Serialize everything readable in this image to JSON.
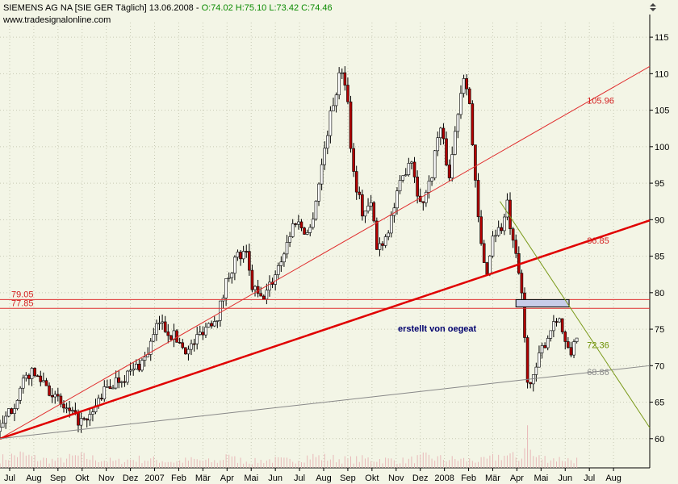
{
  "header": {
    "title": "SIEMENS AG NA [SIE GER  Täglich] 13.06.2008 - ",
    "ohlc": "O:74.02 H:75.10 L:73.42 C:74.46",
    "url": "www.tradesignalonline.com"
  },
  "watermark": "erstellt von oegeat",
  "chart_data": {
    "type": "candlestick",
    "ylim": [
      56,
      117
    ],
    "y_ticks": [
      60,
      65,
      70,
      75,
      80,
      85,
      90,
      95,
      100,
      105,
      110,
      115
    ],
    "x_ticks": [
      "Jul",
      "Aug",
      "Sep",
      "Okt",
      "Nov",
      "Dez",
      "2007",
      "Feb",
      "Mär",
      "Apr",
      "Mai",
      "Jun",
      "Jul",
      "Aug",
      "Sep",
      "Okt",
      "Nov",
      "Dez",
      "2008",
      "Feb",
      "Mär",
      "Apr",
      "Mai",
      "Jun",
      "Jul",
      "Aug"
    ],
    "price_path": [
      [
        0,
        61
      ],
      [
        3,
        65
      ],
      [
        6,
        69
      ],
      [
        9,
        68
      ],
      [
        12,
        65
      ],
      [
        15,
        63
      ],
      [
        18,
        62
      ],
      [
        21,
        66
      ],
      [
        24,
        68
      ],
      [
        27,
        69
      ],
      [
        30,
        71
      ],
      [
        33,
        76
      ],
      [
        36,
        74
      ],
      [
        39,
        72
      ],
      [
        42,
        75
      ],
      [
        45,
        77
      ],
      [
        46,
        79
      ],
      [
        47,
        82
      ],
      [
        49,
        85
      ],
      [
        51,
        85
      ],
      [
        52,
        81
      ],
      [
        54,
        79
      ],
      [
        56,
        81
      ],
      [
        59,
        86
      ],
      [
        61,
        90
      ],
      [
        64,
        88
      ],
      [
        66,
        95
      ],
      [
        68,
        103
      ],
      [
        70,
        109
      ],
      [
        71,
        111
      ],
      [
        72,
        106
      ],
      [
        73,
        97
      ],
      [
        75,
        91
      ],
      [
        77,
        92
      ],
      [
        78,
        86
      ],
      [
        80,
        88
      ],
      [
        83,
        95
      ],
      [
        85,
        99
      ],
      [
        87,
        92
      ],
      [
        89,
        95
      ],
      [
        91,
        103
      ],
      [
        93,
        96
      ],
      [
        95,
        106
      ],
      [
        96,
        110
      ],
      [
        97,
        108
      ],
      [
        98,
        98
      ],
      [
        99,
        90
      ],
      [
        100,
        84
      ],
      [
        101,
        83
      ],
      [
        102,
        88
      ],
      [
        104,
        89
      ],
      [
        105,
        92
      ],
      [
        106,
        87
      ],
      [
        107,
        84
      ],
      [
        108,
        80
      ],
      [
        109,
        69
      ],
      [
        110,
        67
      ],
      [
        112,
        72
      ],
      [
        114,
        75
      ],
      [
        115,
        77
      ],
      [
        116,
        76
      ],
      [
        117,
        73
      ],
      [
        118,
        71
      ],
      [
        119,
        74
      ],
      [
        119.6,
        74.5
      ]
    ],
    "volume_path": [
      [
        0,
        10
      ],
      [
        4,
        15
      ],
      [
        8,
        10
      ],
      [
        12,
        8
      ],
      [
        16,
        13
      ],
      [
        20,
        10
      ],
      [
        24,
        7
      ],
      [
        28,
        10
      ],
      [
        32,
        9
      ],
      [
        36,
        7
      ],
      [
        40,
        9
      ],
      [
        44,
        7
      ],
      [
        46,
        8
      ],
      [
        47,
        21
      ],
      [
        48,
        10
      ],
      [
        52,
        7
      ],
      [
        56,
        9
      ],
      [
        60,
        8
      ],
      [
        64,
        13
      ],
      [
        68,
        11
      ],
      [
        72,
        9
      ],
      [
        76,
        10
      ],
      [
        80,
        9
      ],
      [
        84,
        8
      ],
      [
        88,
        12
      ],
      [
        92,
        10
      ],
      [
        96,
        9
      ],
      [
        100,
        8
      ],
      [
        104,
        14
      ],
      [
        108,
        11
      ],
      [
        109,
        48
      ],
      [
        110,
        13
      ],
      [
        112,
        11
      ],
      [
        116,
        10
      ],
      [
        119,
        9
      ]
    ],
    "horizontal_lines": [
      {
        "label": "79.05",
        "value": 79.05
      },
      {
        "label": "77.85",
        "value": 77.85
      }
    ],
    "trend_lines": [
      {
        "label": "105.96",
        "from": [
          0,
          60
        ],
        "to": [
          134.5,
          111
        ],
        "style": "thin-red"
      },
      {
        "label": "86.85",
        "from": [
          0,
          60
        ],
        "to": [
          134.5,
          89.9
        ],
        "style": "thick-red"
      },
      {
        "label": "68.86",
        "from": [
          0,
          60
        ],
        "to": [
          134.5,
          70
        ],
        "style": "gray"
      },
      {
        "label": "72.36",
        "from": [
          103.5,
          92.5
        ],
        "to": [
          134.5,
          61.5
        ],
        "style": "olive"
      }
    ],
    "trend_labels": [
      {
        "text": "105.96",
        "at": [
          121.5,
          105.9
        ],
        "color": "#d42020"
      },
      {
        "text": "86.85",
        "at": [
          121.5,
          86.7
        ],
        "color": "#d42020"
      },
      {
        "text": "72.36",
        "at": [
          121.5,
          72.4
        ],
        "color": "#6b8f00"
      },
      {
        "text": "68.86",
        "at": [
          121.5,
          68.7
        ],
        "color": "#888888"
      }
    ],
    "box": {
      "x0": 106.8,
      "x1": 117.8,
      "y0": 78.05,
      "y1": 79.05
    },
    "colors": {
      "up": "#ffffff",
      "down": "#b30000",
      "hline": "#e03030",
      "thin": "#e03030",
      "thick": "#e00000",
      "gray": "#888888",
      "olive": "#7a9a1a",
      "grid": "#c7c9b4",
      "vol": "#e8b8b8"
    }
  }
}
